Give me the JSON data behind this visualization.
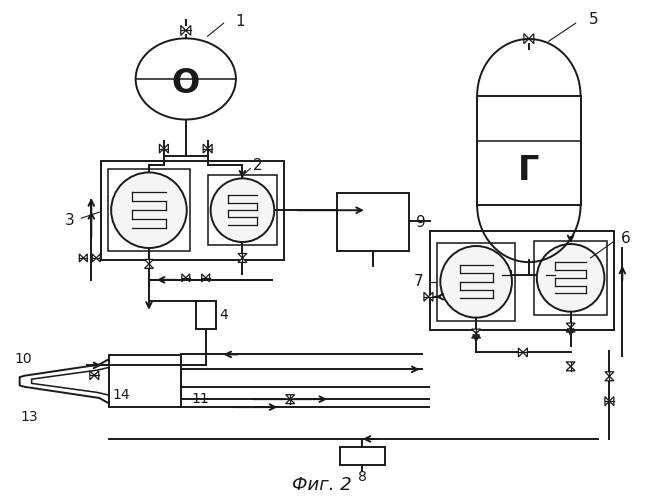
{
  "title": "Фиг. 2",
  "bg_color": "#ffffff",
  "line_color": "#1a1a1a",
  "label_1": "1",
  "label_2": "2",
  "label_3": "3",
  "label_4": "4",
  "label_5": "5",
  "label_6": "6",
  "label_7": "7",
  "label_8": "8",
  "label_9": "9",
  "label_10": "10",
  "label_11": "11",
  "label_13": "13",
  "label_14": "14",
  "tank_O_label": "О",
  "tank_G_label": "Г",
  "figsize": [
    6.45,
    5.0
  ],
  "dpi": 100
}
